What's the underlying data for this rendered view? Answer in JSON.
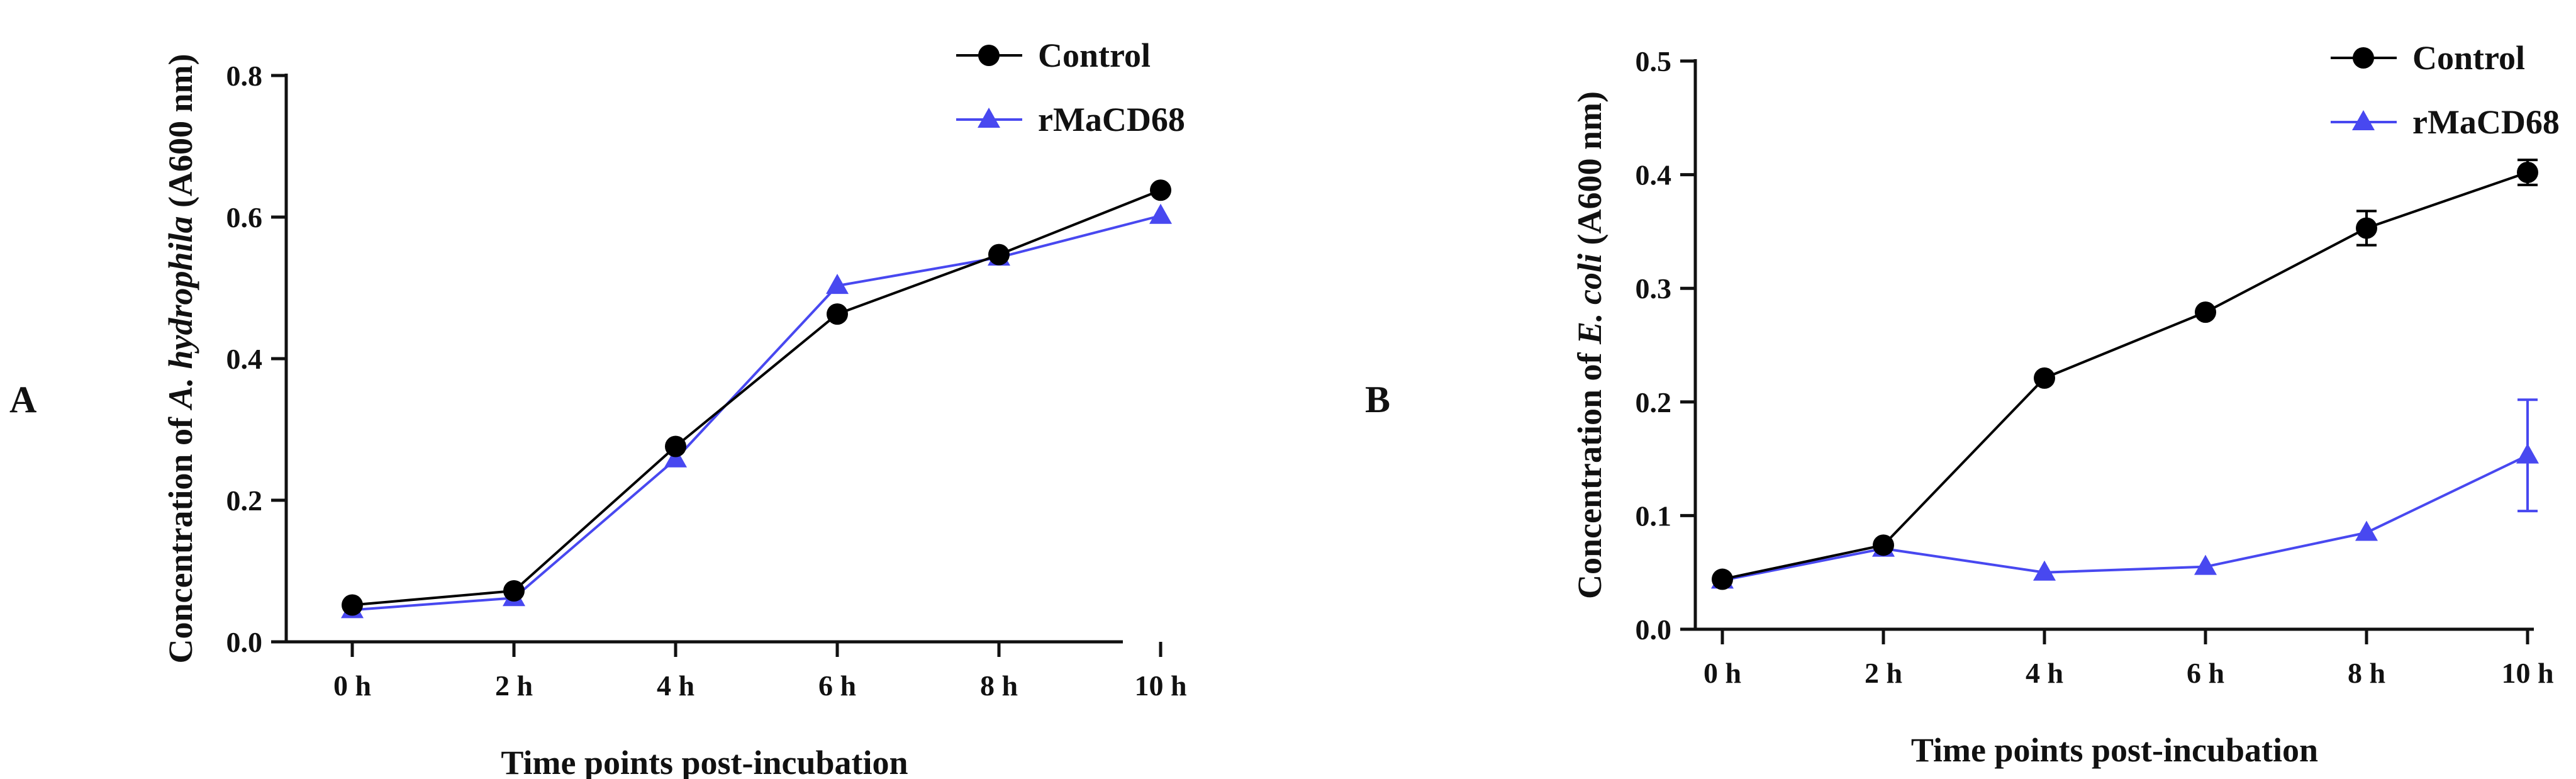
{
  "panels": [
    {
      "letter": "A",
      "chart_data": {
        "type": "line",
        "title": "",
        "categories": [
          "0 h",
          "2 h",
          "4 h",
          "6 h",
          "8 h",
          "10 h"
        ],
        "xlabel": "Time points post-incubation",
        "ylabel_prefix": "Concentration of ",
        "ylabel_italic": "A. hydrophila",
        "ylabel_suffix": " (A600 nm)",
        "ylim": [
          0,
          0.8
        ],
        "yticks": [
          0.0,
          0.2,
          0.4,
          0.6,
          0.8
        ],
        "ytick_labels": [
          "0.0",
          "0.2",
          "0.4",
          "0.6",
          "0.8"
        ],
        "legend_position": "top-right",
        "series": [
          {
            "name": "Control",
            "marker": "circle",
            "color": "#000000",
            "values": [
              0.052,
              0.072,
              0.276,
              0.463,
              0.547,
              0.638
            ],
            "errors": [
              0,
              0,
              0,
              0,
              0,
              0
            ]
          },
          {
            "name": "rMaCD68",
            "marker": "triangle",
            "color": "#4848f0",
            "values": [
              0.045,
              0.062,
              0.258,
              0.503,
              0.543,
              0.602
            ],
            "errors": [
              0,
              0,
              0,
              0,
              0,
              0
            ]
          }
        ]
      }
    },
    {
      "letter": "B",
      "chart_data": {
        "type": "line",
        "title": "",
        "categories": [
          "0 h",
          "2 h",
          "4 h",
          "6 h",
          "8 h",
          "10 h"
        ],
        "xlabel": "Time points post-incubation",
        "ylabel_prefix": "Concentration of ",
        "ylabel_italic": "E. coli",
        "ylabel_suffix": " (A600 nm)",
        "ylim": [
          0,
          0.5
        ],
        "yticks": [
          0.0,
          0.1,
          0.2,
          0.3,
          0.4,
          0.5
        ],
        "ytick_labels": [
          "0.0",
          "0.1",
          "0.2",
          "0.3",
          "0.4",
          "0.5"
        ],
        "legend_position": "top-right",
        "series": [
          {
            "name": "Control",
            "marker": "circle",
            "color": "#000000",
            "values": [
              0.044,
              0.074,
              0.221,
              0.279,
              0.353,
              0.402
            ],
            "errors": [
              0,
              0,
              0,
              0,
              0.015,
              0.011
            ]
          },
          {
            "name": "rMaCD68",
            "marker": "triangle",
            "color": "#4848f0",
            "values": [
              0.043,
              0.071,
              0.05,
              0.055,
              0.085,
              0.153
            ],
            "errors": [
              0,
              0,
              0,
              0,
              0,
              0.049
            ]
          }
        ]
      }
    }
  ]
}
